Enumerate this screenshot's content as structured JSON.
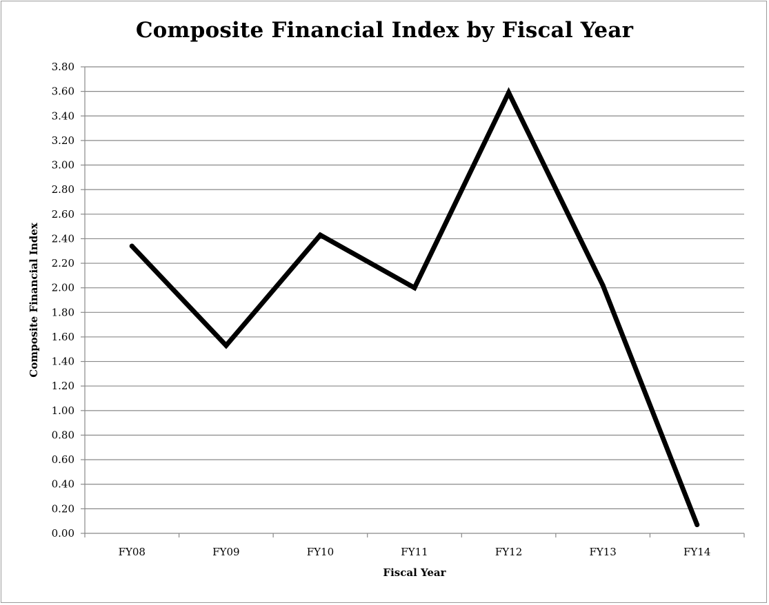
{
  "chart_data": {
    "type": "line",
    "title": "Composite Financial Index by Fiscal Year",
    "xlabel": "Fiscal Year",
    "ylabel": "Composite Financial Index",
    "categories": [
      "FY08",
      "FY09",
      "FY10",
      "FY11",
      "FY12",
      "FY13",
      "FY14"
    ],
    "series": [
      {
        "values": [
          2.34,
          1.53,
          2.43,
          2.0,
          3.59,
          2.02,
          0.07
        ],
        "color": "#000000"
      }
    ],
    "ylim": [
      0,
      3.8
    ],
    "ytick_labels": [
      "0.00",
      "0.20",
      "0.40",
      "0.60",
      "0.80",
      "1.00",
      "1.20",
      "1.40",
      "1.60",
      "1.80",
      "2.00",
      "2.20",
      "2.40",
      "2.60",
      "2.80",
      "3.00",
      "3.20",
      "3.40",
      "3.60",
      "3.80"
    ],
    "grid": true,
    "legend": "none",
    "gridline_color": "#888888",
    "line_color": "#000000"
  }
}
